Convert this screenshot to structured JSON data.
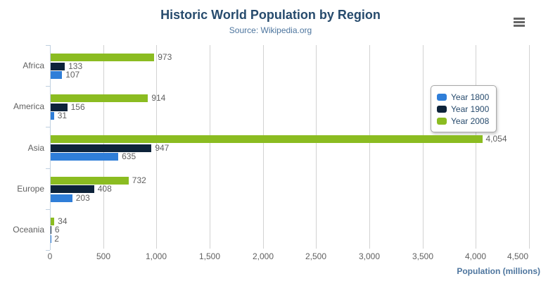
{
  "chart_data": {
    "type": "bar",
    "orientation": "horizontal",
    "title": "Historic World Population by Region",
    "subtitle": "Source: Wikipedia.org",
    "categories": [
      "Africa",
      "America",
      "Asia",
      "Europe",
      "Oceania"
    ],
    "series": [
      {
        "name": "Year 1800",
        "color": "#2f7ed8",
        "values": [
          107,
          31,
          635,
          203,
          2
        ]
      },
      {
        "name": "Year 1900",
        "color": "#0d233a",
        "values": [
          133,
          156,
          947,
          408,
          6
        ]
      },
      {
        "name": "Year 2008",
        "color": "#8bbc21",
        "values": [
          973,
          914,
          4054,
          732,
          34
        ]
      }
    ],
    "series_display_order_top_to_bottom": [
      "Year 2008",
      "Year 1900",
      "Year 1800"
    ],
    "data_labels_shown": true,
    "xlabel": "Population (millions)",
    "xlim": [
      0,
      4500
    ],
    "xtick_step": 500,
    "xtick_labels": [
      "0",
      "500",
      "1,000",
      "1,500",
      "2,000",
      "2,500",
      "3,000",
      "3,500",
      "4,000",
      "4,500"
    ],
    "grid": true,
    "legend_position": "inside-right-top"
  },
  "export_menu": {
    "icon": "hamburger-menu-icon"
  },
  "colors": {
    "title_text": "#274b6d",
    "subtitle_text": "#4d759e",
    "axis_title_text": "#4d759e",
    "axis_label_text": "#606060",
    "data_label_text": "#606060",
    "gridline": "#d2d2d2",
    "axis_line": "#c0d0e0",
    "legend_text": "#274b6d",
    "background": "#ffffff"
  }
}
